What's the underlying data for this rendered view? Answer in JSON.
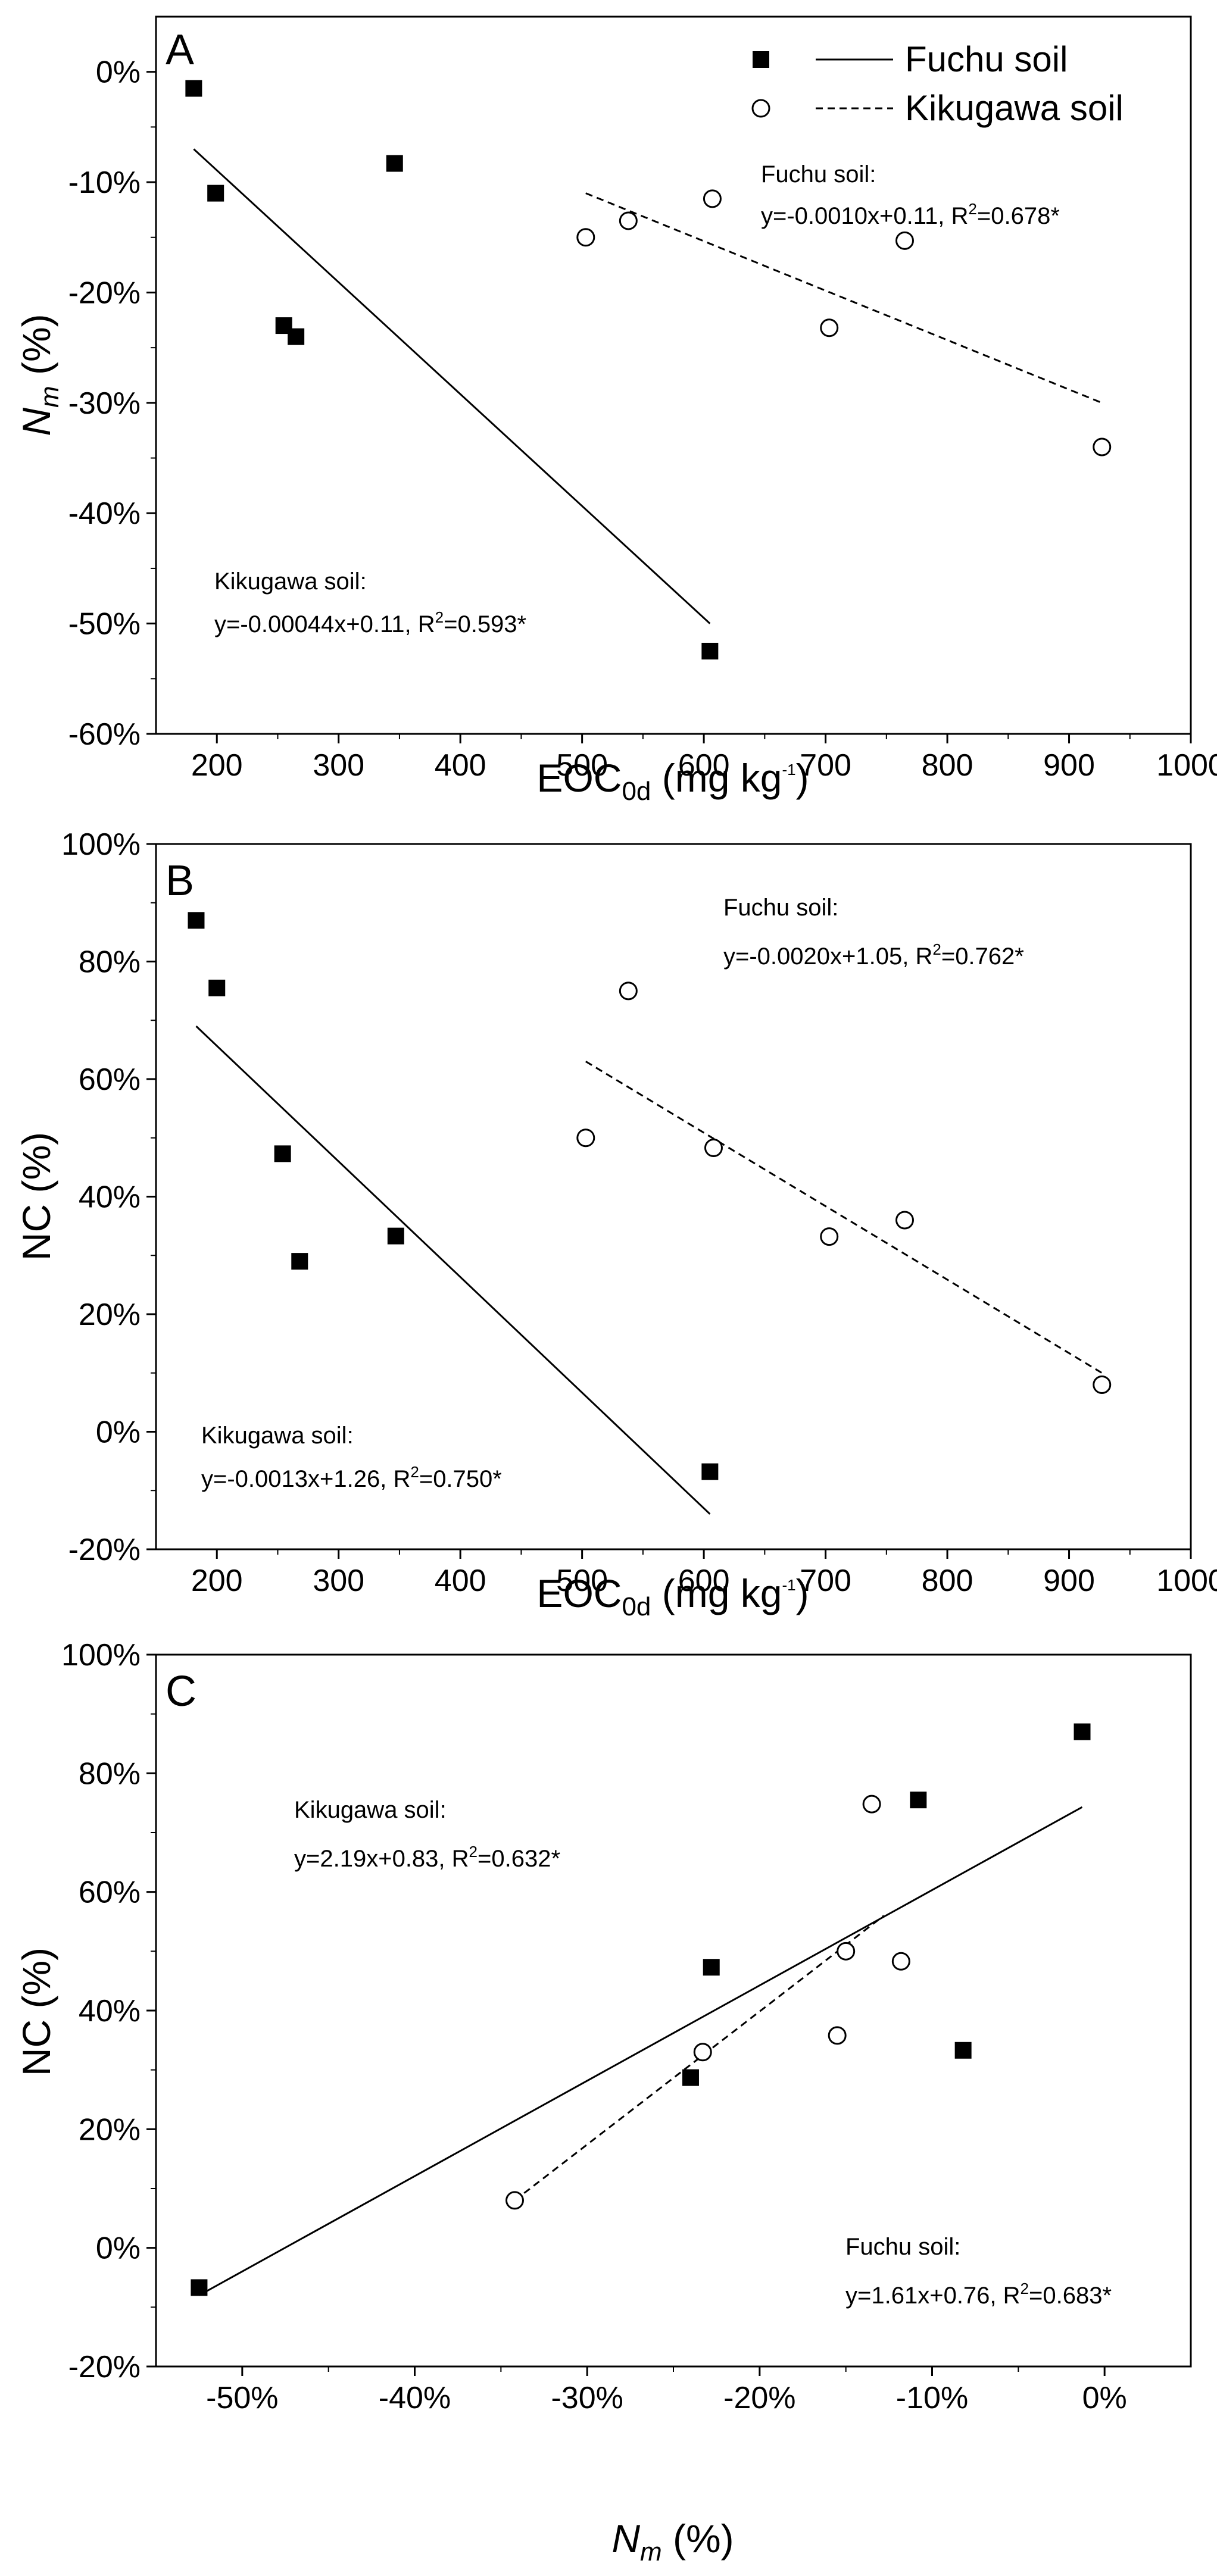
{
  "legend": {
    "fuchu": "Fuchu soil",
    "kikugawa": "Kikugawa soil"
  },
  "chart_data": [
    {
      "id": "A",
      "type": "scatter",
      "panel_label": "A",
      "xlabel": {
        "main": "EOC",
        "sub": "0d",
        "unit": " (mg kg",
        "sup": "-1",
        "close": ")"
      },
      "ylabel": {
        "main": "N",
        "sub": "m",
        "unit": " (%)"
      },
      "xlim": [
        150,
        1000
      ],
      "ylim": [
        -60,
        5
      ],
      "xticks": [
        200,
        300,
        400,
        500,
        600,
        700,
        800,
        900,
        1000
      ],
      "yticks": [
        -60,
        -50,
        -40,
        -30,
        -20,
        -10,
        0
      ],
      "ytick_format": "percent",
      "series": [
        {
          "name": "Fuchu soil",
          "marker": "square",
          "x": [
            181,
            199,
            255,
            265,
            346,
            605
          ],
          "y": [
            -1.5,
            -11,
            -23,
            -24,
            -8.3,
            -52.5
          ]
        },
        {
          "name": "Kikugawa soil",
          "marker": "circle-open",
          "x": [
            503,
            538,
            607,
            703,
            765,
            927
          ],
          "y": [
            -15,
            -13.5,
            -11.5,
            -23.2,
            -15.3,
            -34
          ]
        }
      ],
      "fit_lines": [
        {
          "series": "Fuchu soil",
          "style": "solid",
          "x": [
            181,
            605
          ],
          "y": [
            -7,
            -50
          ]
        },
        {
          "series": "Kikugawa soil",
          "style": "dashed",
          "x": [
            503,
            927
          ],
          "y": [
            -11,
            -30
          ]
        }
      ],
      "annotations": [
        {
          "title": "Fuchu soil:",
          "eq": "y=-0.0010x+0.11, R",
          "sup": "2",
          "tail": "=0.678*"
        },
        {
          "title": "Kikugawa soil:",
          "eq": "y=-0.00044x+0.11, R",
          "sup": "2",
          "tail": "=0.593*"
        }
      ]
    },
    {
      "id": "B",
      "type": "scatter",
      "panel_label": "B",
      "xlabel": {
        "main": "EOC",
        "sub": "0d",
        "unit": " (mg kg",
        "sup": "-1",
        "close": ")"
      },
      "ylabel": {
        "main": "NC",
        "sub": "",
        "unit": " (%)"
      },
      "xlim": [
        150,
        1000
      ],
      "ylim": [
        -20,
        100
      ],
      "xticks": [
        200,
        300,
        400,
        500,
        600,
        700,
        800,
        900,
        1000
      ],
      "yticks": [
        -20,
        0,
        20,
        40,
        60,
        80,
        100
      ],
      "ytick_format": "percent",
      "series": [
        {
          "name": "Fuchu soil",
          "marker": "square",
          "x": [
            183,
            200,
            254,
            268,
            347,
            605
          ],
          "y": [
            87,
            75.5,
            47.3,
            29,
            33.3,
            -6.8
          ]
        },
        {
          "name": "Kikugawa soil",
          "marker": "circle-open",
          "x": [
            503,
            538,
            608,
            703,
            765,
            927
          ],
          "y": [
            50,
            75,
            48.3,
            33.2,
            36,
            8
          ]
        }
      ],
      "fit_lines": [
        {
          "series": "Fuchu soil",
          "style": "solid",
          "x": [
            183,
            605
          ],
          "y": [
            69,
            -14
          ]
        },
        {
          "series": "Kikugawa soil",
          "style": "dashed",
          "x": [
            503,
            927
          ],
          "y": [
            63,
            10
          ]
        }
      ],
      "annotations": [
        {
          "title": "Fuchu soil:",
          "eq": "y=-0.0020x+1.05, R",
          "sup": "2",
          "tail": "=0.762*"
        },
        {
          "title": "Kikugawa soil:",
          "eq": "y=-0.0013x+1.26, R",
          "sup": "2",
          "tail": "=0.750*"
        }
      ]
    },
    {
      "id": "C",
      "type": "scatter",
      "panel_label": "C",
      "xlabel": {
        "main": "N",
        "sub": "m",
        "unit": " (%)",
        "sup": "",
        "close": ""
      },
      "ylabel": {
        "main": "NC",
        "sub": "",
        "unit": " (%)"
      },
      "xlim": [
        -55,
        5
      ],
      "ylim": [
        -20,
        100
      ],
      "xticks": [
        -50,
        -40,
        -30,
        -20,
        -10,
        0
      ],
      "xtick_format": "percent",
      "yticks": [
        -20,
        0,
        20,
        40,
        60,
        80,
        100
      ],
      "ytick_format": "percent",
      "series": [
        {
          "name": "Fuchu soil",
          "marker": "square",
          "x": [
            -52.5,
            -24,
            -22.8,
            -10.8,
            -8.2,
            -1.3
          ],
          "y": [
            -6.7,
            28.7,
            47.3,
            75.5,
            33.3,
            87
          ]
        },
        {
          "name": "Kikugawa soil",
          "marker": "circle-open",
          "x": [
            -34.2,
            -23.3,
            -15.5,
            -15,
            -13.5,
            -11.8
          ],
          "y": [
            8,
            33,
            35.8,
            50,
            74.8,
            48.3
          ]
        }
      ],
      "fit_lines": [
        {
          "series": "Fuchu soil",
          "style": "solid",
          "x": [
            -52.5,
            -1.3
          ],
          "y": [
            -8,
            74.3
          ]
        },
        {
          "series": "Kikugawa soil",
          "style": "dashed",
          "x": [
            -34.2,
            -12.8
          ],
          "y": [
            8,
            56
          ]
        }
      ],
      "annotations": [
        {
          "title": "Kikugawa soil:",
          "eq": "y=2.19x+0.83, R",
          "sup": "2",
          "tail": "=0.632*"
        },
        {
          "title": "Fuchu soil:",
          "eq": "y=1.61x+0.76, R",
          "sup": "2",
          "tail": "=0.683*"
        }
      ]
    }
  ]
}
